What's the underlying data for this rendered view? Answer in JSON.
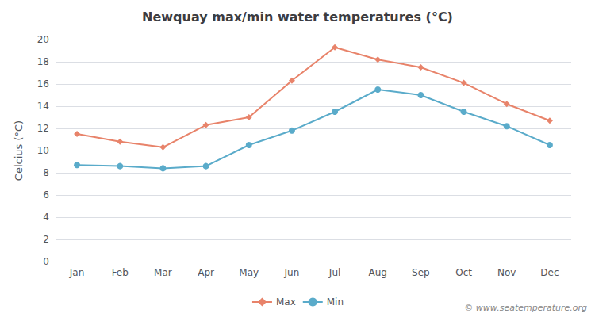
{
  "chart_data": {
    "type": "line",
    "title": "Newquay max/min water temperatures (°C)",
    "ylabel": "Celcius (°C)",
    "categories": [
      "Jan",
      "Feb",
      "Mar",
      "Apr",
      "May",
      "Jun",
      "Jul",
      "Aug",
      "Sep",
      "Oct",
      "Nov",
      "Dec"
    ],
    "series": [
      {
        "name": "Max",
        "color": "#e8836a",
        "marker": "diamond",
        "values": [
          11.5,
          10.8,
          10.3,
          12.3,
          13.0,
          16.3,
          19.3,
          18.2,
          17.5,
          16.1,
          14.2,
          12.7
        ]
      },
      {
        "name": "Min",
        "color": "#5aabca",
        "marker": "circle",
        "values": [
          8.7,
          8.6,
          8.4,
          8.6,
          10.5,
          11.8,
          13.5,
          15.5,
          15.0,
          13.5,
          12.2,
          10.5
        ]
      }
    ],
    "ylim": [
      0,
      20
    ],
    "yticks": [
      0,
      2,
      4,
      6,
      8,
      10,
      12,
      14,
      16,
      18,
      20
    ],
    "grid": true,
    "legend": "bottom",
    "annotations": [
      "© www.seatemperature.org"
    ]
  }
}
